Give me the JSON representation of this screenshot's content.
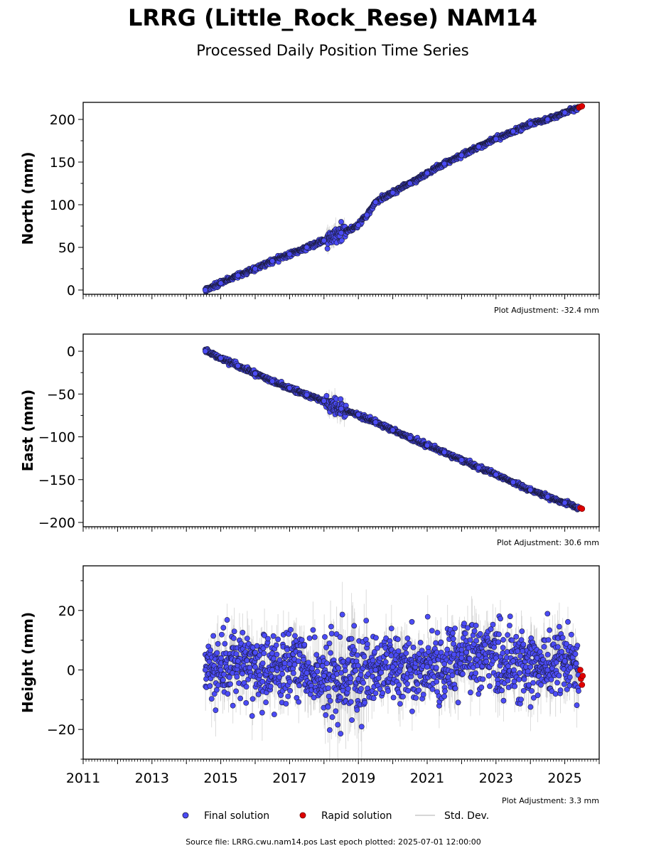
{
  "header": {
    "title": "LRRG (Little_Rock_Rese) NAM14",
    "subtitle": "Processed Daily Position Time Series"
  },
  "legend": {
    "final": "Final solution",
    "rapid": "Rapid solution",
    "std": "Std. Dev."
  },
  "footer": {
    "source": "Source file: LRRG.cwu.nam14.pos  Last epoch plotted: 2025-07-01 12:00:00"
  },
  "colors": {
    "final": "#4b4bf5",
    "rapid": "#e00000",
    "std": "#9a9a9a",
    "edge": "#1a1a3a"
  },
  "chart_data": [
    {
      "type": "scatter",
      "ylabel": "North (mm)",
      "adjustment": "Plot Adjustment: -32.4 mm",
      "xlim": [
        2011,
        2026
      ],
      "ylim": [
        -5,
        220
      ],
      "yticks": [
        0,
        50,
        100,
        150,
        200
      ],
      "x_major_ticks": [
        2011,
        2012,
        2013,
        2014,
        2015,
        2016,
        2017,
        2018,
        2019,
        2020,
        2021,
        2022,
        2023,
        2024,
        2025,
        2026
      ],
      "x_tick_labels": [],
      "series": [
        {
          "name": "Final solution",
          "x": [
            2014.55,
            2015.0,
            2015.5,
            2016.0,
            2016.5,
            2017.0,
            2017.5,
            2018.0,
            2018.5,
            2019.0,
            2019.25,
            2019.5,
            2020.0,
            2020.5,
            2021.0,
            2021.5,
            2022.0,
            2022.5,
            2023.0,
            2023.5,
            2024.0,
            2024.5,
            2025.0,
            2025.4
          ],
          "values": [
            0,
            8,
            17,
            25,
            34,
            42,
            50,
            58,
            67,
            76,
            88,
            103,
            114,
            125,
            137,
            148,
            158,
            168,
            177,
            186,
            195,
            200,
            208,
            214
          ]
        },
        {
          "name": "Rapid solution",
          "x": [
            2025.42,
            2025.46,
            2025.5
          ],
          "values": [
            214,
            215,
            215.5
          ]
        }
      ]
    },
    {
      "type": "scatter",
      "ylabel": "East (mm)",
      "adjustment": "Plot Adjustment: 30.6 mm",
      "xlim": [
        2011,
        2026
      ],
      "ylim": [
        -205,
        20
      ],
      "yticks": [
        0,
        -50,
        -100,
        -150,
        -200
      ],
      "x_major_ticks": [
        2011,
        2012,
        2013,
        2014,
        2015,
        2016,
        2017,
        2018,
        2019,
        2020,
        2021,
        2022,
        2023,
        2024,
        2025,
        2026
      ],
      "x_tick_labels": [],
      "series": [
        {
          "name": "Final solution",
          "x": [
            2014.55,
            2015.0,
            2015.5,
            2016.0,
            2016.5,
            2017.0,
            2017.5,
            2018.0,
            2018.5,
            2019.0,
            2019.5,
            2020.0,
            2020.5,
            2021.0,
            2021.5,
            2022.0,
            2022.5,
            2023.0,
            2023.5,
            2024.0,
            2024.5,
            2025.0,
            2025.4
          ],
          "values": [
            0,
            -8,
            -17,
            -26,
            -35,
            -43,
            -51,
            -58,
            -67,
            -74,
            -83,
            -92,
            -101,
            -110,
            -118,
            -127,
            -136,
            -144,
            -153,
            -162,
            -170,
            -177,
            -183
          ]
        },
        {
          "name": "Rapid solution",
          "x": [
            2025.45,
            2025.5
          ],
          "values": [
            -183,
            -184
          ]
        }
      ]
    },
    {
      "type": "scatter",
      "ylabel": "Height (mm)",
      "adjustment": "Plot Adjustment: 3.3 mm",
      "xlim": [
        2011,
        2026
      ],
      "ylim": [
        -30,
        35
      ],
      "yticks": [
        20,
        0,
        -20
      ],
      "x_major_ticks": [
        2011,
        2012,
        2013,
        2014,
        2015,
        2016,
        2017,
        2018,
        2019,
        2020,
        2021,
        2022,
        2023,
        2024,
        2025,
        2026
      ],
      "x_tick_labels": [
        "2011",
        "2013",
        "2015",
        "2017",
        "2019",
        "2021",
        "2023",
        "2025"
      ],
      "series": [
        {
          "name": "Final solution",
          "x": [
            2014.55,
            2015.0,
            2015.5,
            2016.0,
            2016.5,
            2017.0,
            2017.5,
            2018.0,
            2018.5,
            2019.0,
            2019.5,
            2020.0,
            2020.5,
            2021.0,
            2021.5,
            2022.0,
            2022.5,
            2023.0,
            2023.5,
            2024.0,
            2024.5,
            2025.0,
            2025.4
          ],
          "values": [
            0,
            0,
            3,
            1,
            0,
            2,
            -1,
            -2,
            -1,
            -3,
            0,
            1,
            0,
            1,
            2,
            4,
            5,
            4,
            3,
            1,
            0,
            3,
            0
          ]
        },
        {
          "name": "Rapid solution",
          "x": [
            2025.45,
            2025.47,
            2025.5,
            2025.52
          ],
          "values": [
            0,
            -3,
            -5,
            -2
          ]
        }
      ]
    }
  ]
}
